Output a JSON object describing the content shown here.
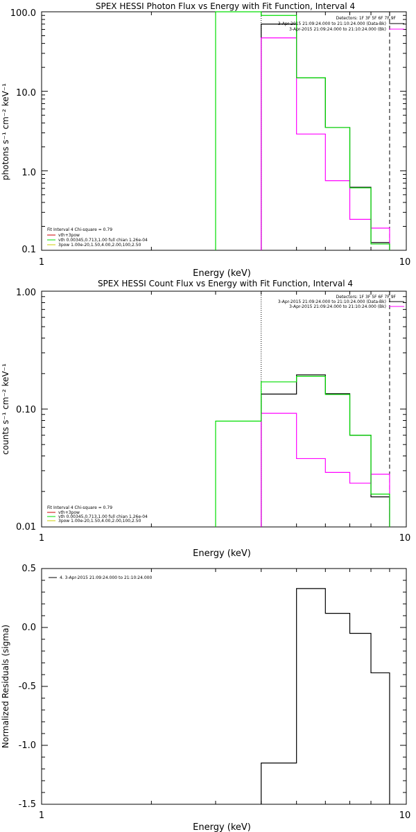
{
  "chart_data": [
    {
      "type": "line",
      "title": "SPEX HESSI Photon Flux vs Energy with Fit Function, Interval 4",
      "xlabel": "Energy (keV)",
      "ylabel": "photons s⁻¹ cm⁻² keV⁻¹",
      "xscale": "log",
      "yscale": "log",
      "xlim": [
        1,
        10
      ],
      "ylim": [
        0.1,
        100
      ],
      "x_ticks": [
        "1",
        "10"
      ],
      "y_ticks": [
        "0.1",
        "1.0",
        "10.0",
        "100.0"
      ],
      "grid": false,
      "legend_position": "top-right",
      "legend": {
        "title": "Detectors: 1F 3F 5F 6F 7F 9F",
        "items": [
          {
            "label": "3-Apr-2015 21:09:24.000 to 21:10:24.000 (Data-Bk)",
            "color": "#000000"
          },
          {
            "label": "3-Apr-2015 21:09:24.000 to 21:10:24.000 (Bk)",
            "color": "#ff00ff"
          }
        ]
      },
      "fit_info": {
        "header": "Fit Interval 4   Chi-square = 0.79",
        "items": [
          {
            "label": "vth+3pow",
            "color": "#cc0000"
          },
          {
            "label": "vth 0.00345,0.713,1.00  full chian 1.26e-04",
            "color": "#00dd00"
          },
          {
            "label": "3pow 1.00e-20,1.50,4.00,2.00,100,2.50",
            "color": "#cccc00"
          }
        ]
      },
      "markers": [
        {
          "x": 4.0,
          "style": "dotted"
        },
        {
          "x": 9.0,
          "style": "dashed"
        }
      ],
      "series": [
        {
          "name": "Data-Bk",
          "color": "#000000",
          "style": "step",
          "edges": [
            4.0,
            5.0,
            6.0,
            7.0,
            8.0,
            9.0
          ],
          "values": [
            70,
            14.8,
            3.5,
            0.62,
            0.125
          ]
        },
        {
          "name": "Bk",
          "color": "#ff00ff",
          "style": "step",
          "edges": [
            4.0,
            5.0,
            6.0,
            7.0,
            8.0,
            9.0
          ],
          "values": [
            47,
            2.9,
            0.75,
            0.245,
            0.19
          ]
        },
        {
          "name": "vth",
          "color": "#00dd00",
          "style": "step",
          "edges": [
            3.0,
            4.0,
            5.0,
            6.0,
            7.0,
            8.0,
            9.0
          ],
          "values": [
            130,
            90,
            14.8,
            3.5,
            0.61,
            0.12
          ]
        }
      ]
    },
    {
      "type": "line",
      "title": "SPEX HESSI Count Flux vs Energy with Fit Function, Interval 4",
      "xlabel": "Energy (keV)",
      "ylabel": "counts s⁻¹ cm⁻² keV⁻¹",
      "xscale": "log",
      "yscale": "log",
      "xlim": [
        1,
        10
      ],
      "ylim": [
        0.01,
        1
      ],
      "x_ticks": [
        "1",
        "10"
      ],
      "y_ticks": [
        "0.01",
        "0.10",
        "1.00"
      ],
      "grid": false,
      "legend_position": "top-right",
      "legend": {
        "title": "Detectors: 1F 3F 5F 6F 7F 9F",
        "items": [
          {
            "label": "3-Apr-2015 21:09:24.000 to 21:10:24.000 (Data-Bk)",
            "color": "#000000"
          },
          {
            "label": "3-Apr-2015 21:09:24.000 to 21:10:24.000 (Bk)",
            "color": "#ff00ff"
          }
        ]
      },
      "fit_info": {
        "header": "Fit Interval 4   Chi-square = 0.79",
        "items": [
          {
            "label": "vth+3pow",
            "color": "#cc0000"
          },
          {
            "label": "vth 0.00345,0.713,1.00  full chian 1.26e-04",
            "color": "#00dd00"
          },
          {
            "label": "3pow 1.00e-20,1.50,4.00,2.00,100,2.50",
            "color": "#cccc00"
          }
        ]
      },
      "markers": [
        {
          "x": 4.0,
          "style": "dotted"
        },
        {
          "x": 9.0,
          "style": "dashed"
        }
      ],
      "series": [
        {
          "name": "Data-Bk",
          "color": "#000000",
          "style": "step",
          "edges": [
            4.0,
            5.0,
            6.0,
            7.0,
            8.0,
            9.0
          ],
          "values": [
            0.134,
            0.195,
            0.135,
            0.06,
            0.018
          ]
        },
        {
          "name": "Bk",
          "color": "#ff00ff",
          "style": "step",
          "edges": [
            4.0,
            5.0,
            6.0,
            7.0,
            8.0,
            9.0
          ],
          "values": [
            0.092,
            0.038,
            0.029,
            0.0235,
            0.028
          ]
        },
        {
          "name": "vth",
          "color": "#00dd00",
          "style": "step",
          "edges": [
            3.0,
            4.0,
            5.0,
            6.0,
            7.0,
            8.0,
            9.0
          ],
          "values": [
            0.079,
            0.17,
            0.19,
            0.133,
            0.06,
            0.019
          ]
        }
      ]
    },
    {
      "type": "line",
      "title": "",
      "xlabel": "Energy (keV)",
      "ylabel": "Normalized Residuals (sigma)",
      "xscale": "log",
      "yscale": "linear",
      "xlim": [
        1,
        10
      ],
      "ylim": [
        -1.5,
        0.5
      ],
      "x_ticks": [
        "1",
        "10"
      ],
      "y_ticks": [
        "-1.5",
        "-1.0",
        "-0.5",
        "0.0",
        "0.5"
      ],
      "grid": false,
      "legend_position": "top-left",
      "legend": {
        "title": "",
        "items": [
          {
            "label": "4.  3-Apr-2015 21:09:24.000 to 21:10:24.000",
            "color": "#000000"
          }
        ]
      },
      "series": [
        {
          "name": "4",
          "color": "#000000",
          "style": "step",
          "edges": [
            4.0,
            5.0,
            6.0,
            7.0,
            8.0,
            9.0
          ],
          "values": [
            -1.15,
            0.33,
            0.12,
            -0.05,
            -0.385
          ]
        }
      ]
    }
  ]
}
